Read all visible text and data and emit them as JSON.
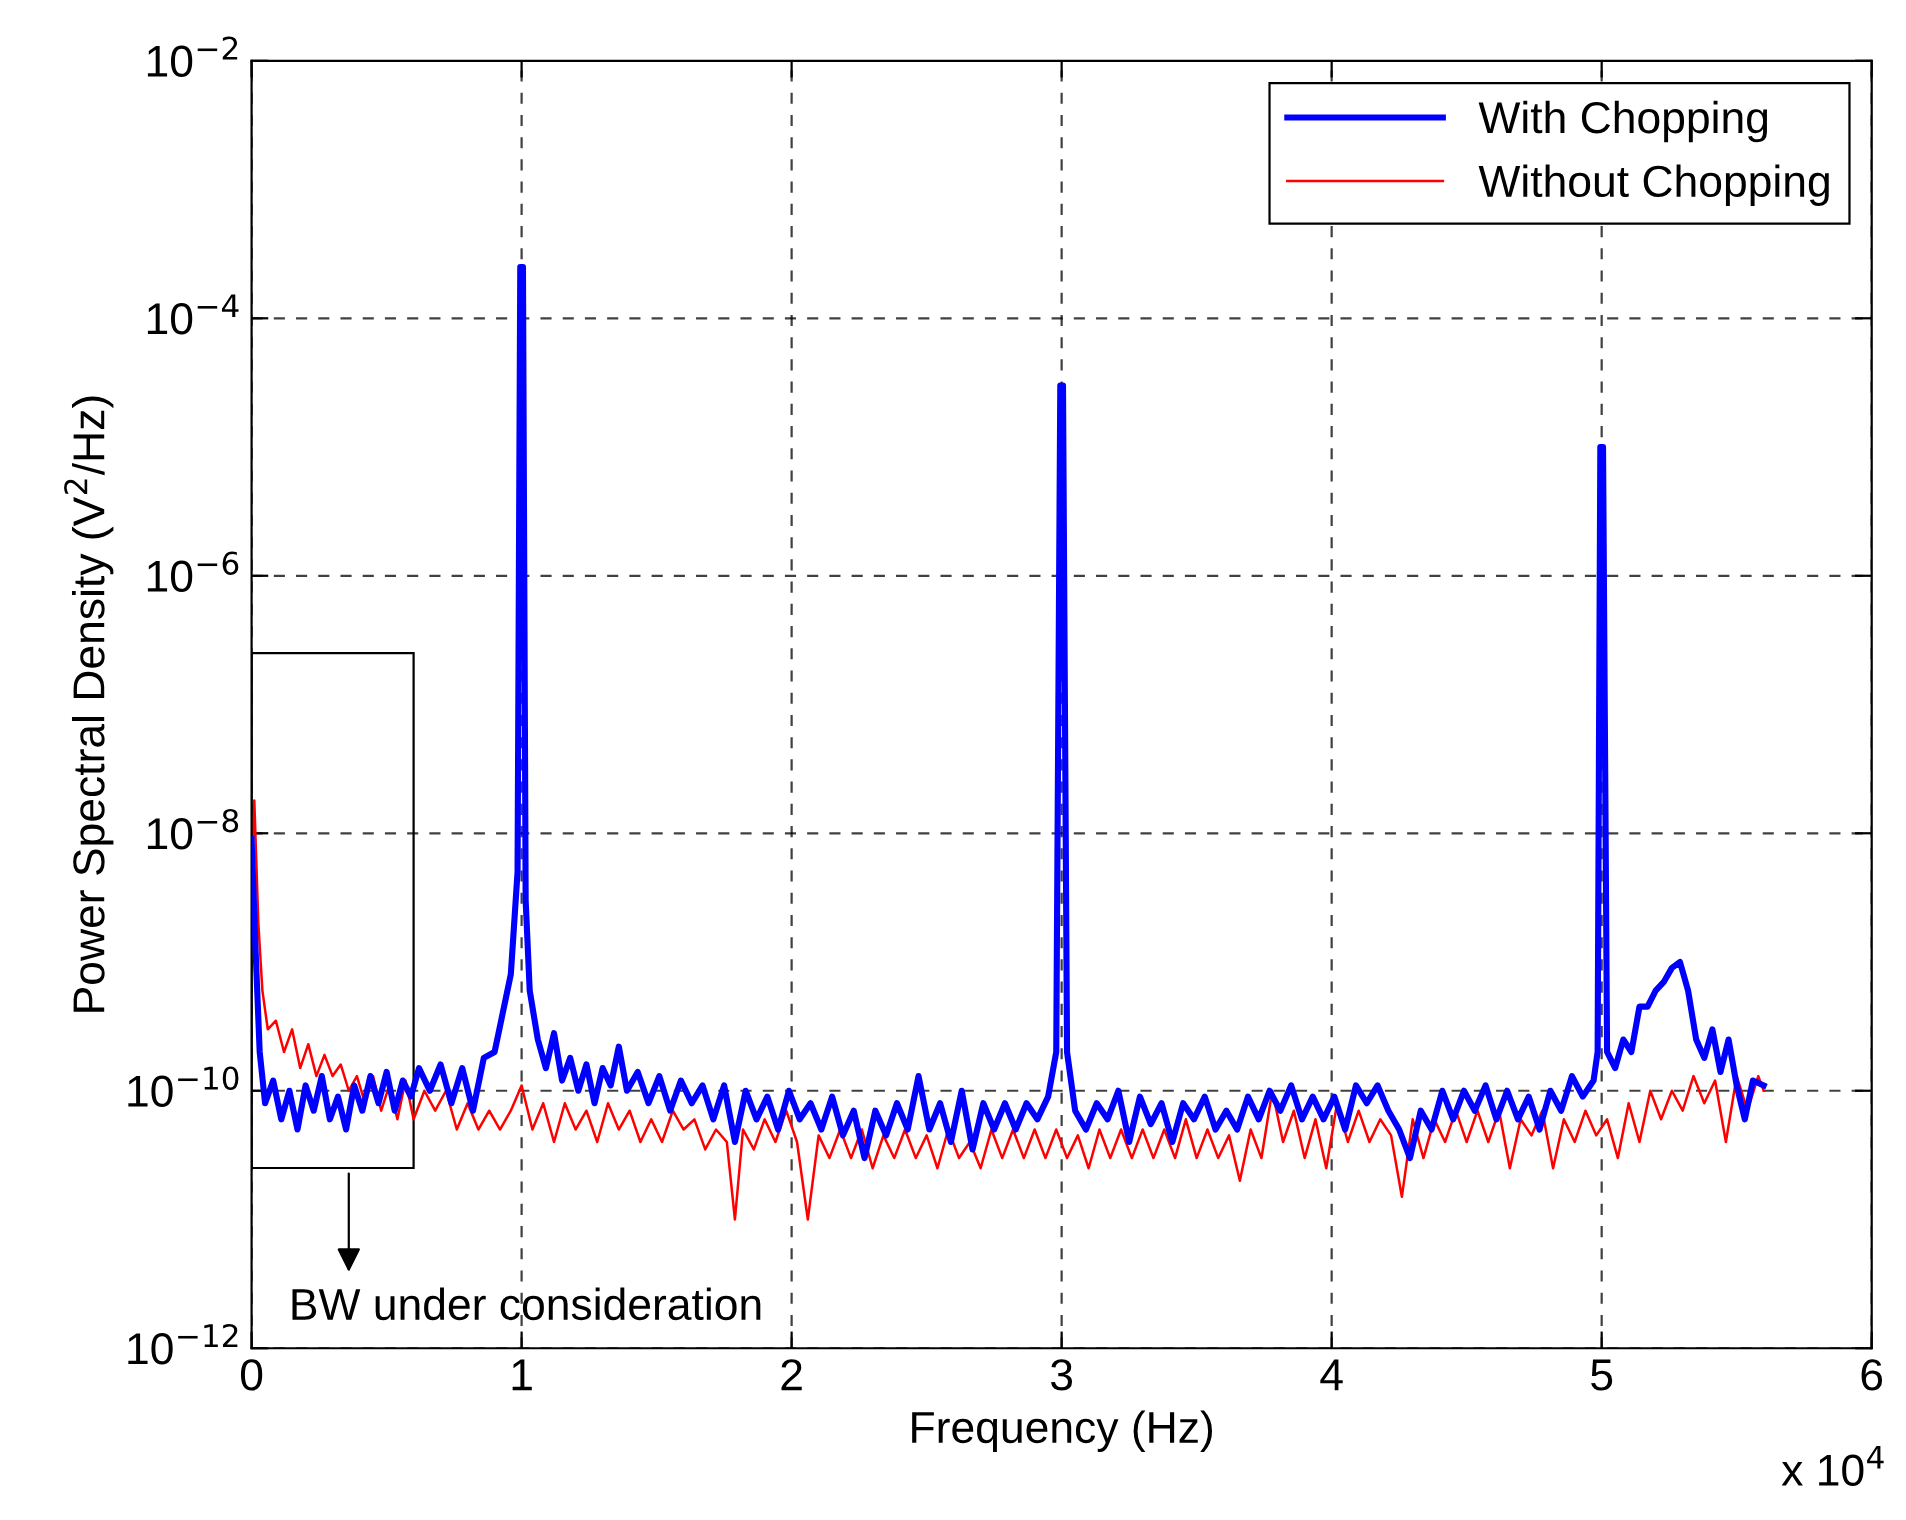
{
  "chart_data": {
    "type": "line",
    "xlabel": "Frequency (Hz)",
    "ylabel": "Power Spectral Density (V$^{2}$/Hz)",
    "log": "y",
    "grid": true,
    "legend": "top right",
    "line_style": "solid",
    "xlim": [
      0,
      6
    ],
    "xticks": [
      0,
      1,
      2,
      3,
      4,
      5,
      6
    ],
    "ylim": [
      1e-12,
      0.01
    ],
    "yticks": [
      {
        "value": 1e-12,
        "label": "10$^{−12}$"
      },
      {
        "value": 1e-10,
        "label": "10$^{−10}$"
      },
      {
        "value": 1e-08,
        "label": "10$^{−8}$"
      },
      {
        "value": 1e-06,
        "label": "10$^{−6}$"
      },
      {
        "value": 0.0001,
        "label": "10$^{−4}$"
      },
      {
        "value": 0.01,
        "label": "10$^{−2}$"
      }
    ],
    "annotations": [
      "x 10$^{4}$"
    ],
    "bands": [
      {
        "axis": "x",
        "from": 0,
        "to": 0.6,
        "label": "BW under consideration",
        "color": "#ffffff"
      }
    ],
    "series": [
      {
        "name": "With Chopping",
        "color": "#0000ff",
        "x": [
          0,
          0.015,
          0.03,
          0.05,
          0.08,
          0.11,
          0.14,
          0.17,
          0.2,
          0.23,
          0.26,
          0.29,
          0.32,
          0.35,
          0.38,
          0.41,
          0.44,
          0.47,
          0.5,
          0.53,
          0.56,
          0.59,
          0.62,
          0.66,
          0.7,
          0.74,
          0.78,
          0.82,
          0.86,
          0.9,
          0.93,
          0.96,
          0.985,
          0.995,
          1.005,
          1.015,
          1.03,
          1.06,
          1.09,
          1.12,
          1.15,
          1.18,
          1.21,
          1.24,
          1.27,
          1.3,
          1.33,
          1.36,
          1.39,
          1.43,
          1.47,
          1.51,
          1.55,
          1.59,
          1.63,
          1.67,
          1.71,
          1.75,
          1.79,
          1.83,
          1.87,
          1.91,
          1.95,
          1.99,
          2.03,
          2.07,
          2.11,
          2.15,
          2.19,
          2.23,
          2.27,
          2.31,
          2.35,
          2.39,
          2.43,
          2.47,
          2.51,
          2.55,
          2.59,
          2.63,
          2.67,
          2.71,
          2.75,
          2.79,
          2.83,
          2.87,
          2.91,
          2.95,
          2.98,
          2.995,
          3.005,
          3.02,
          3.05,
          3.09,
          3.13,
          3.17,
          3.21,
          3.25,
          3.29,
          3.33,
          3.37,
          3.41,
          3.45,
          3.49,
          3.53,
          3.57,
          3.61,
          3.65,
          3.69,
          3.73,
          3.77,
          3.81,
          3.85,
          3.89,
          3.93,
          3.97,
          4.01,
          4.05,
          4.09,
          4.13,
          4.17,
          4.21,
          4.25,
          4.29,
          4.33,
          4.37,
          4.41,
          4.45,
          4.49,
          4.53,
          4.57,
          4.61,
          4.65,
          4.69,
          4.73,
          4.77,
          4.81,
          4.85,
          4.89,
          4.93,
          4.97,
          4.985,
          4.995,
          5.005,
          5.02,
          5.05,
          5.08,
          5.11,
          5.14,
          5.17,
          5.2,
          5.23,
          5.26,
          5.29,
          5.32,
          5.35,
          5.38,
          5.41,
          5.44,
          5.47,
          5.5,
          5.53,
          5.56,
          5.6
        ],
        "values": [
          9e-09,
          1.2e-09,
          2e-10,
          8e-11,
          1.2e-10,
          6e-11,
          1e-10,
          5e-11,
          1.1e-10,
          7e-11,
          1.3e-10,
          6e-11,
          9e-11,
          5e-11,
          1.1e-10,
          7e-11,
          1.3e-10,
          8e-11,
          1.4e-10,
          7e-11,
          1.2e-10,
          9e-11,
          1.5e-10,
          1e-10,
          1.6e-10,
          8e-11,
          1.5e-10,
          7e-11,
          1.8e-10,
          2e-10,
          4e-10,
          8e-10,
          5e-09,
          0.00025,
          0.00025,
          3e-09,
          6e-10,
          2.5e-10,
          1.5e-10,
          2.8e-10,
          1.2e-10,
          1.8e-10,
          1e-10,
          1.6e-10,
          8e-11,
          1.5e-10,
          1.1e-10,
          2.2e-10,
          1e-10,
          1.4e-10,
          8e-11,
          1.3e-10,
          7e-11,
          1.2e-10,
          8e-11,
          1.1e-10,
          6e-11,
          1.1e-10,
          4e-11,
          1e-10,
          6e-11,
          9e-11,
          5e-11,
          1e-10,
          6e-11,
          8e-11,
          5e-11,
          9e-11,
          4.5e-11,
          7e-11,
          3e-11,
          7e-11,
          4.5e-11,
          8e-11,
          5e-11,
          1.3e-10,
          5e-11,
          8e-11,
          4e-11,
          1e-10,
          3.5e-11,
          8e-11,
          5e-11,
          8e-11,
          5e-11,
          8e-11,
          6e-11,
          9e-11,
          2e-10,
          3e-05,
          3e-05,
          2e-10,
          7e-11,
          5e-11,
          8e-11,
          6e-11,
          1e-10,
          4e-11,
          9e-11,
          5.5e-11,
          8e-11,
          4e-11,
          8e-11,
          6e-11,
          9e-11,
          5e-11,
          7e-11,
          5e-11,
          9e-11,
          6e-11,
          1e-10,
          7e-11,
          1.1e-10,
          6e-11,
          9e-11,
          6e-11,
          9e-11,
          5e-11,
          1.1e-10,
          8e-11,
          1.1e-10,
          7e-11,
          5e-11,
          3e-11,
          7e-11,
          5e-11,
          1e-10,
          6e-11,
          1e-10,
          7e-11,
          1.1e-10,
          6e-11,
          1e-10,
          6e-11,
          9e-11,
          5e-11,
          1e-10,
          7e-11,
          1.3e-10,
          9e-11,
          1.2e-10,
          2e-10,
          1e-05,
          1e-05,
          2e-10,
          1.5e-10,
          2.5e-10,
          2e-10,
          4.5e-10,
          4.5e-10,
          6e-10,
          7e-10,
          9e-10,
          1e-09,
          6e-10,
          2.5e-10,
          1.8e-10,
          3e-10,
          1.4e-10,
          2.5e-10,
          1.1e-10,
          6e-11,
          1.2e-10,
          1.1e-10
        ]
      },
      {
        "name": "Without Chopping",
        "color": "#ff0000",
        "x": [
          0,
          0.01,
          0.025,
          0.04,
          0.06,
          0.09,
          0.12,
          0.15,
          0.18,
          0.21,
          0.24,
          0.27,
          0.3,
          0.33,
          0.36,
          0.39,
          0.42,
          0.45,
          0.48,
          0.51,
          0.54,
          0.57,
          0.6,
          0.64,
          0.68,
          0.72,
          0.76,
          0.8,
          0.84,
          0.88,
          0.92,
          0.96,
          1,
          1.04,
          1.08,
          1.12,
          1.16,
          1.2,
          1.24,
          1.28,
          1.32,
          1.36,
          1.4,
          1.44,
          1.48,
          1.52,
          1.56,
          1.6,
          1.64,
          1.68,
          1.72,
          1.76,
          1.79,
          1.82,
          1.86,
          1.9,
          1.94,
          1.98,
          2.02,
          2.06,
          2.1,
          2.14,
          2.18,
          2.22,
          2.26,
          2.3,
          2.34,
          2.38,
          2.42,
          2.46,
          2.5,
          2.54,
          2.58,
          2.62,
          2.66,
          2.7,
          2.74,
          2.78,
          2.82,
          2.86,
          2.9,
          2.94,
          2.98,
          3.02,
          3.06,
          3.1,
          3.14,
          3.18,
          3.22,
          3.26,
          3.3,
          3.34,
          3.38,
          3.42,
          3.46,
          3.5,
          3.54,
          3.58,
          3.62,
          3.66,
          3.7,
          3.74,
          3.78,
          3.82,
          3.86,
          3.9,
          3.94,
          3.98,
          4.02,
          4.06,
          4.1,
          4.14,
          4.18,
          4.22,
          4.26,
          4.3,
          4.34,
          4.38,
          4.42,
          4.46,
          4.5,
          4.54,
          4.58,
          4.62,
          4.66,
          4.7,
          4.74,
          4.78,
          4.82,
          4.86,
          4.9,
          4.94,
          4.98,
          5.02,
          5.06,
          5.1,
          5.14,
          5.18,
          5.22,
          5.26,
          5.3,
          5.34,
          5.38,
          5.42,
          5.46,
          5.5,
          5.54,
          5.58,
          5.6
        ],
        "values": [
          5e-09,
          1.8e-08,
          2e-09,
          6e-10,
          3e-10,
          3.5e-10,
          2e-10,
          3e-10,
          1.5e-10,
          2.3e-10,
          1.3e-10,
          1.9e-10,
          1.3e-10,
          1.6e-10,
          1e-10,
          1.3e-10,
          8e-11,
          1.3e-10,
          7e-11,
          1.1e-10,
          6e-11,
          1.2e-10,
          6e-11,
          1e-10,
          7e-11,
          1e-10,
          5e-11,
          8e-11,
          5e-11,
          7e-11,
          5e-11,
          7e-11,
          1.1e-10,
          5e-11,
          8e-11,
          4e-11,
          8e-11,
          5e-11,
          7e-11,
          4e-11,
          8e-11,
          5e-11,
          7e-11,
          4e-11,
          6e-11,
          4e-11,
          7e-11,
          5e-11,
          6e-11,
          3.5e-11,
          5e-11,
          4e-11,
          1e-11,
          5e-11,
          3.5e-11,
          6e-11,
          4e-11,
          7e-11,
          4e-11,
          1e-11,
          4.5e-11,
          3e-11,
          5e-11,
          3e-11,
          5e-11,
          2.5e-11,
          4.5e-11,
          3e-11,
          5e-11,
          3e-11,
          4.5e-11,
          2.5e-11,
          5e-11,
          3e-11,
          4e-11,
          2.5e-11,
          5e-11,
          3e-11,
          5e-11,
          3e-11,
          5e-11,
          3e-11,
          5e-11,
          3e-11,
          4.5e-11,
          2.5e-11,
          5e-11,
          3e-11,
          5e-11,
          3e-11,
          5e-11,
          3e-11,
          5e-11,
          3e-11,
          6e-11,
          3e-11,
          5e-11,
          3e-11,
          4.5e-11,
          2e-11,
          5e-11,
          3e-11,
          1e-10,
          4e-11,
          7e-11,
          3e-11,
          6e-11,
          2.5e-11,
          8e-11,
          4e-11,
          7e-11,
          4e-11,
          6e-11,
          4.5e-11,
          1.5e-11,
          6e-11,
          3e-11,
          6e-11,
          4e-11,
          7e-11,
          4e-11,
          7e-11,
          4e-11,
          7e-11,
          2.5e-11,
          6e-11,
          4.5e-11,
          7e-11,
          2.5e-11,
          6e-11,
          4e-11,
          7e-11,
          4.5e-11,
          6e-11,
          3e-11,
          8e-11,
          4e-11,
          1e-10,
          6e-11,
          1e-10,
          7e-11,
          1.3e-10,
          8e-11,
          1.2e-10,
          4e-11,
          1.3e-10,
          7e-11,
          1.3e-10,
          1e-10
        ]
      }
    ]
  }
}
